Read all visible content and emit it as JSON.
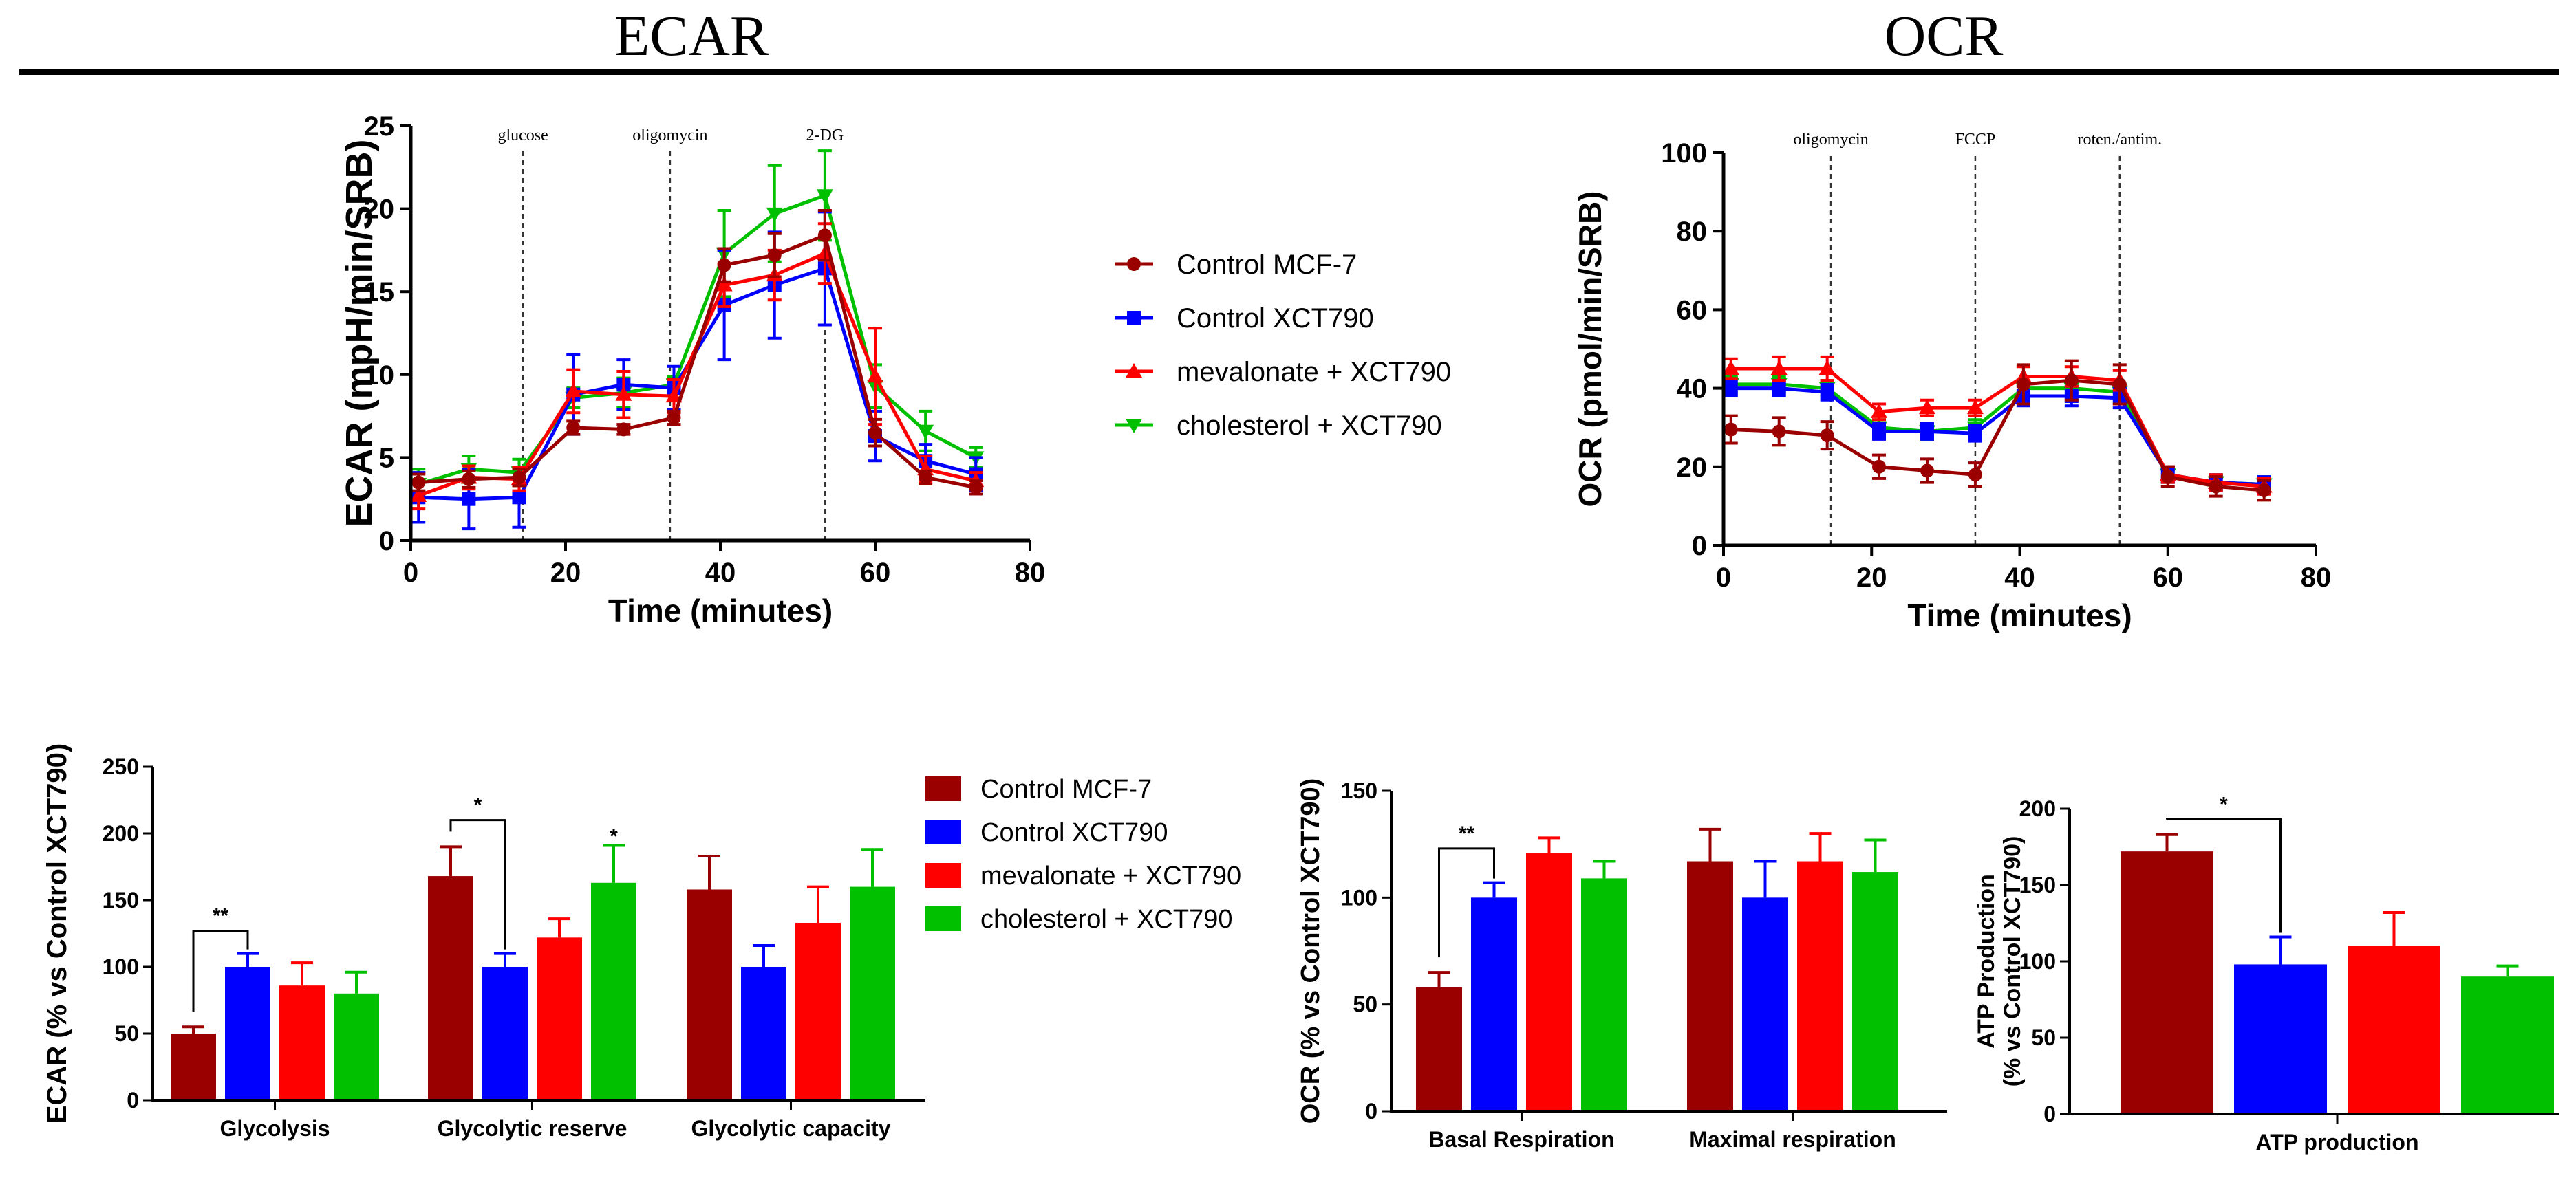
{
  "headers": {
    "left": "ECAR",
    "right": "OCR"
  },
  "colors": {
    "Control MCF-7": "#9b0000",
    "Control XCT790": "#0000ff",
    "mevalonate + XCT790": "#ff0000",
    "cholesterol + XCT790": "#00c000"
  },
  "markers": {
    "Control MCF-7": "circle",
    "Control XCT790": "square",
    "mevalonate + XCT790": "triangle-up",
    "cholesterol + XCT790": "triangle-down"
  },
  "chart_data": [
    {
      "id": "ecar_line",
      "type": "line",
      "xlabel": "Time (minutes)",
      "ylabel": "ECAR (mpH/min/SRB)",
      "xlim": [
        0,
        80
      ],
      "ylim": [
        0,
        25
      ],
      "xticks": [
        0,
        20,
        40,
        60,
        80
      ],
      "yticks": [
        0,
        5,
        10,
        15,
        20,
        25
      ],
      "injections": [
        {
          "x": 14.5,
          "label": "glucose"
        },
        {
          "x": 33.5,
          "label": "oligomycin"
        },
        {
          "x": 53.5,
          "label": "2-DG"
        }
      ],
      "x": [
        1,
        7.5,
        14,
        21,
        27.5,
        34,
        40.5,
        47,
        53.5,
        60,
        66.5,
        73
      ],
      "series": [
        {
          "name": "Control MCF-7",
          "values": [
            3.5,
            3.7,
            3.8,
            6.8,
            6.7,
            7.4,
            16.6,
            17.2,
            18.4,
            6.5,
            3.8,
            3.2
          ],
          "errors": [
            0.5,
            0.5,
            0.5,
            0.4,
            0.3,
            0.4,
            1.0,
            1.3,
            1.5,
            0.8,
            0.4,
            0.4
          ]
        },
        {
          "name": "Control XCT790",
          "values": [
            2.6,
            2.5,
            2.6,
            8.8,
            9.4,
            9.2,
            14.2,
            15.4,
            16.4,
            6.3,
            4.8,
            4.0
          ],
          "errors": [
            1.5,
            1.8,
            1.8,
            2.4,
            1.5,
            1.3,
            3.3,
            3.2,
            3.4,
            1.5,
            1.0,
            1.0
          ]
        },
        {
          "name": "mevalonate + XCT790",
          "values": [
            2.7,
            3.8,
            3.7,
            9.0,
            8.8,
            8.7,
            15.4,
            16.0,
            17.3,
            9.9,
            4.3,
            3.6
          ],
          "errors": [
            0.8,
            0.7,
            0.7,
            1.3,
            1.4,
            1.0,
            1.3,
            1.5,
            1.8,
            2.9,
            0.8,
            0.5
          ]
        },
        {
          "name": "cholesterol + XCT790",
          "values": [
            3.4,
            4.3,
            4.1,
            8.6,
            8.9,
            9.4,
            17.3,
            19.7,
            20.8,
            9.3,
            6.6,
            5.0
          ],
          "errors": [
            0.9,
            0.8,
            0.8,
            0.6,
            0.9,
            0.5,
            2.6,
            2.9,
            2.7,
            1.3,
            1.2,
            0.6
          ]
        }
      ],
      "legend": [
        "Control MCF-7",
        "Control XCT790",
        "mevalonate + XCT790",
        "cholesterol + XCT790"
      ]
    },
    {
      "id": "ocr_line",
      "type": "line",
      "xlabel": "Time (minutes)",
      "ylabel": "OCR (pmol/min/SRB)",
      "xlim": [
        0,
        80
      ],
      "ylim": [
        0,
        100
      ],
      "xticks": [
        0,
        20,
        40,
        60,
        80
      ],
      "yticks": [
        0,
        20,
        40,
        60,
        80,
        100
      ],
      "injections": [
        {
          "x": 14.5,
          "label": "oligomycin"
        },
        {
          "x": 34,
          "label": "FCCP"
        },
        {
          "x": 53.5,
          "label": "roten./antim."
        }
      ],
      "x": [
        1,
        7.5,
        14,
        21,
        27.5,
        34,
        40.5,
        47,
        53.5,
        60,
        66.5,
        73
      ],
      "series": [
        {
          "name": "Control MCF-7",
          "values": [
            29.5,
            29,
            28,
            20,
            19,
            18,
            41,
            42,
            41,
            17.5,
            15,
            14
          ],
          "errors": [
            3.5,
            3.5,
            3.5,
            3,
            3,
            3,
            5,
            5,
            5,
            2.5,
            2.5,
            2.5
          ]
        },
        {
          "name": "Control XCT790",
          "values": [
            40,
            40,
            39,
            29,
            29,
            28.5,
            38,
            38,
            37.5,
            18,
            16,
            15.5
          ],
          "errors": [
            2,
            2,
            2,
            2,
            2,
            2,
            2.5,
            2.5,
            2.5,
            2,
            2,
            2
          ]
        },
        {
          "name": "mevalonate + XCT790",
          "values": [
            45,
            45,
            45,
            34,
            35,
            35,
            43,
            43,
            42,
            18,
            16,
            15
          ],
          "errors": [
            2.5,
            3,
            3,
            2,
            2,
            2,
            2.5,
            2.5,
            2.5,
            2,
            2,
            2
          ]
        },
        {
          "name": "cholesterol + XCT790",
          "values": [
            41,
            41,
            40,
            30,
            29,
            30,
            40,
            40,
            39,
            18,
            16,
            15.5
          ],
          "errors": [
            2,
            2,
            2,
            2,
            2,
            2,
            2,
            2,
            2,
            2,
            2,
            2
          ]
        }
      ]
    },
    {
      "id": "ecar_bar",
      "type": "bar",
      "ylabel": "ECAR (% vs Control XCT790)",
      "ylim": [
        0,
        250
      ],
      "yticks": [
        0,
        50,
        100,
        150,
        200,
        250
      ],
      "categories": [
        "Glycolysis",
        "Glycolytic reserve",
        "Glycolytic capacity"
      ],
      "series": [
        {
          "name": "Control MCF-7",
          "values": [
            50,
            168,
            158
          ],
          "errors": [
            5,
            22,
            25
          ]
        },
        {
          "name": "Control XCT790",
          "values": [
            100,
            100,
            100
          ],
          "errors": [
            10,
            10,
            16
          ]
        },
        {
          "name": "mevalonate + XCT790",
          "values": [
            86,
            122,
            133
          ],
          "errors": [
            17,
            14,
            27
          ]
        },
        {
          "name": "cholesterol + XCT790",
          "values": [
            80,
            163,
            160
          ],
          "errors": [
            16,
            28,
            28
          ]
        }
      ],
      "significance": [
        {
          "category": 0,
          "from": 0,
          "to": 1,
          "y": 127,
          "label": "**"
        },
        {
          "category": 1,
          "from": 0,
          "to": 1,
          "y": 210,
          "label": "*"
        },
        {
          "category": 1,
          "series": 3,
          "y": 196,
          "label": "*"
        }
      ],
      "legend": [
        "Control MCF-7",
        "Control XCT790",
        "mevalonate + XCT790",
        "cholesterol + XCT790"
      ]
    },
    {
      "id": "ocr_bar",
      "type": "bar",
      "ylabel": "OCR (% vs Control XCT790)",
      "ylim": [
        0,
        150
      ],
      "yticks": [
        0,
        50,
        100,
        150
      ],
      "categories": [
        "Basal Respiration",
        "Maximal respiration"
      ],
      "series": [
        {
          "name": "Control MCF-7",
          "values": [
            58,
            117
          ],
          "errors": [
            7,
            15
          ]
        },
        {
          "name": "Control XCT790",
          "values": [
            100,
            100
          ],
          "errors": [
            7,
            17
          ]
        },
        {
          "name": "mevalonate + XCT790",
          "values": [
            121,
            117
          ],
          "errors": [
            7,
            13
          ]
        },
        {
          "name": "cholesterol + XCT790",
          "values": [
            109,
            112
          ],
          "errors": [
            8,
            15
          ]
        }
      ],
      "significance": [
        {
          "category": 0,
          "from": 0,
          "to": 1,
          "y": 123,
          "label": "**"
        }
      ]
    },
    {
      "id": "atp_bar",
      "type": "bar",
      "ylabel": "ATP Production",
      "ylabel2": "(% vs Control XCT790)",
      "ylim": [
        0,
        200
      ],
      "yticks": [
        0,
        50,
        100,
        150,
        200
      ],
      "categories": [
        "ATP production"
      ],
      "series": [
        {
          "name": "Control MCF-7",
          "values": [
            172
          ],
          "errors": [
            11
          ]
        },
        {
          "name": "Control XCT790",
          "values": [
            98
          ],
          "errors": [
            18
          ]
        },
        {
          "name": "mevalonate + XCT790",
          "values": [
            110
          ],
          "errors": [
            22
          ]
        },
        {
          "name": "cholesterol + XCT790",
          "values": [
            90
          ],
          "errors": [
            7
          ]
        }
      ],
      "significance": [
        {
          "category": 0,
          "from": 0,
          "to": 1,
          "y": 193,
          "label": "*"
        }
      ]
    }
  ]
}
